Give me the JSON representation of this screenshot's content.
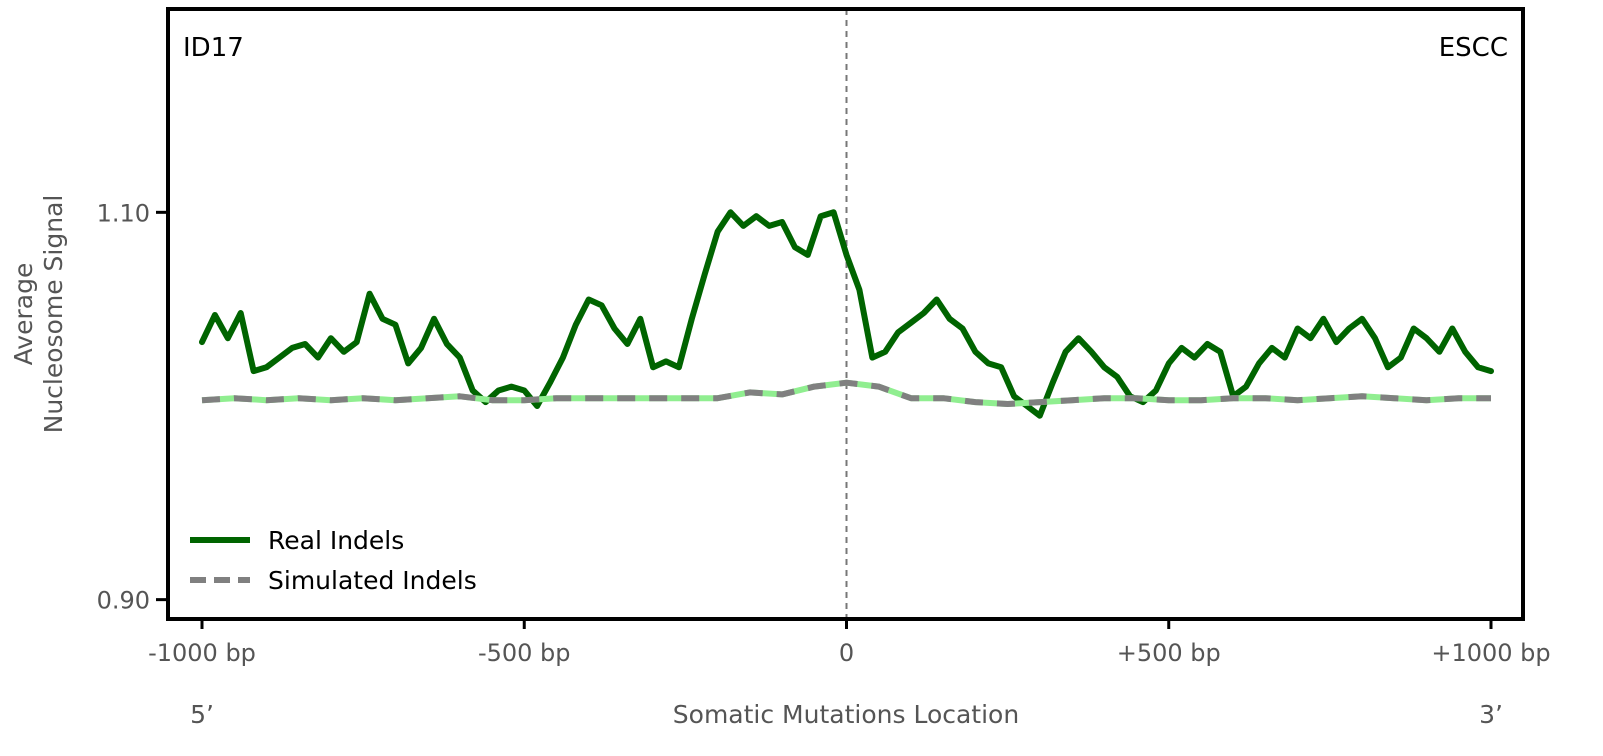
{
  "chart_data": {
    "type": "line",
    "annotation_left": "ID17",
    "annotation_right": "ESCC",
    "xlabel": "Somatic Mutations Location",
    "ylabel_line1": "Average",
    "ylabel_line2": "Nucleosome Signal",
    "end_left": "5’",
    "end_right": "3’",
    "xlim": [
      -1000,
      1000
    ],
    "ylim": [
      0.89,
      1.205
    ],
    "x_ticks": [
      {
        "value": -1000,
        "label": "-1000 bp"
      },
      {
        "value": -500,
        "label": "-500 bp"
      },
      {
        "value": 0,
        "label": "0"
      },
      {
        "value": 500,
        "label": "+500 bp"
      },
      {
        "value": 1000,
        "label": "+1000 bp"
      }
    ],
    "y_ticks": [
      {
        "value": 0.9,
        "label": "0.90"
      },
      {
        "value": 1.1,
        "label": "1.10"
      }
    ],
    "vline_x": 0,
    "legend_position": "lower-left",
    "series": [
      {
        "name": "Real Indels",
        "color": "#006400",
        "style": "solid",
        "x": [
          -1000,
          -980,
          -960,
          -940,
          -920,
          -900,
          -880,
          -860,
          -840,
          -820,
          -800,
          -780,
          -760,
          -740,
          -720,
          -700,
          -680,
          -660,
          -640,
          -620,
          -600,
          -580,
          -560,
          -540,
          -520,
          -500,
          -480,
          -460,
          -440,
          -420,
          -400,
          -380,
          -360,
          -340,
          -320,
          -300,
          -280,
          -260,
          -240,
          -220,
          -200,
          -180,
          -160,
          -140,
          -120,
          -100,
          -80,
          -60,
          -40,
          -20,
          0,
          20,
          40,
          60,
          80,
          100,
          120,
          140,
          160,
          180,
          200,
          220,
          240,
          260,
          280,
          300,
          320,
          340,
          360,
          380,
          400,
          420,
          440,
          460,
          480,
          500,
          520,
          540,
          560,
          580,
          600,
          620,
          640,
          660,
          680,
          700,
          720,
          740,
          760,
          780,
          800,
          820,
          840,
          860,
          880,
          900,
          920,
          940,
          960,
          980,
          1000
        ],
        "values": [
          1.033,
          1.047,
          1.035,
          1.048,
          1.018,
          1.02,
          1.025,
          1.03,
          1.032,
          1.025,
          1.035,
          1.028,
          1.033,
          1.058,
          1.045,
          1.042,
          1.022,
          1.03,
          1.045,
          1.032,
          1.025,
          1.008,
          1.002,
          1.008,
          1.01,
          1.008,
          1.0,
          1.012,
          1.025,
          1.042,
          1.055,
          1.052,
          1.04,
          1.032,
          1.045,
          1.02,
          1.023,
          1.02,
          1.045,
          1.068,
          1.09,
          1.1,
          1.093,
          1.098,
          1.093,
          1.095,
          1.082,
          1.078,
          1.098,
          1.1,
          1.078,
          1.06,
          1.025,
          1.028,
          1.038,
          1.043,
          1.048,
          1.055,
          1.045,
          1.04,
          1.028,
          1.022,
          1.02,
          1.005,
          1.0,
          0.995,
          1.012,
          1.028,
          1.035,
          1.028,
          1.02,
          1.015,
          1.005,
          1.002,
          1.008,
          1.022,
          1.03,
          1.025,
          1.032,
          1.028,
          1.005,
          1.01,
          1.022,
          1.03,
          1.025,
          1.04,
          1.035,
          1.045,
          1.033,
          1.04,
          1.045,
          1.035,
          1.02,
          1.025,
          1.04,
          1.035,
          1.028,
          1.04,
          1.028,
          1.02,
          1.018
        ]
      },
      {
        "name": "Simulated Indels",
        "color": "#808080",
        "style": "dashed",
        "x": [
          -1000,
          -950,
          -900,
          -850,
          -800,
          -750,
          -700,
          -650,
          -600,
          -550,
          -500,
          -450,
          -400,
          -350,
          -300,
          -250,
          -200,
          -150,
          -100,
          -50,
          0,
          50,
          100,
          150,
          200,
          250,
          300,
          350,
          400,
          450,
          500,
          550,
          600,
          650,
          700,
          750,
          800,
          850,
          900,
          950,
          1000
        ],
        "values": [
          1.003,
          1.004,
          1.003,
          1.004,
          1.003,
          1.004,
          1.003,
          1.004,
          1.005,
          1.003,
          1.003,
          1.004,
          1.004,
          1.004,
          1.004,
          1.004,
          1.004,
          1.007,
          1.006,
          1.01,
          1.012,
          1.01,
          1.004,
          1.004,
          1.002,
          1.001,
          1.002,
          1.003,
          1.004,
          1.004,
          1.003,
          1.003,
          1.004,
          1.004,
          1.003,
          1.004,
          1.005,
          1.004,
          1.003,
          1.004,
          1.004
        ]
      }
    ]
  }
}
